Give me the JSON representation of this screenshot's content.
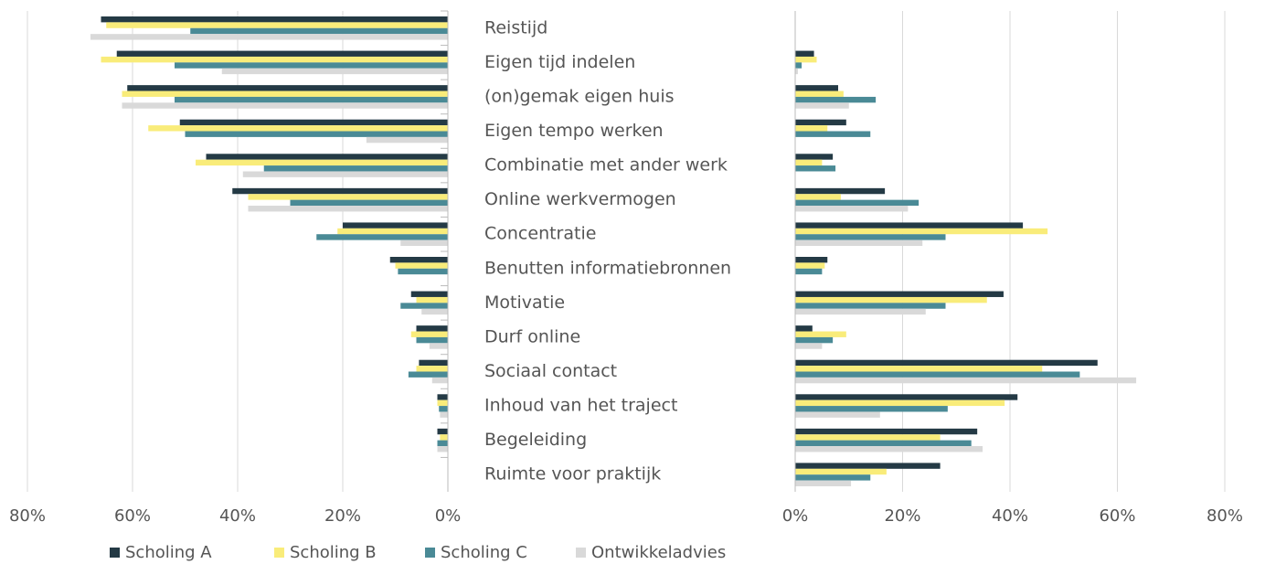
{
  "chart_data": {
    "type": "butterfly",
    "categories": [
      "Reistijd",
      "Eigen tijd indelen",
      "(on)gemak eigen huis",
      "Eigen tempo werken",
      "Combinatie met ander werk",
      "Online werkvermogen",
      "Concentratie",
      "Benutten informatiebronnen",
      "Motivatie",
      "Durf online",
      "Sociaal contact",
      "Inhoud van het traject",
      "Begeleiding",
      "Ruimte voor praktijk"
    ],
    "series": [
      {
        "name": "Scholing A",
        "color": "#243a45",
        "left": [
          66,
          63,
          61,
          51,
          46,
          41,
          20,
          11,
          7,
          6,
          5.5,
          2,
          2,
          0
        ],
        "right": [
          0,
          3.5,
          8,
          9.5,
          7,
          16.7,
          42.4,
          6,
          38.8,
          3.2,
          56.3,
          41.4,
          33.9,
          27
        ]
      },
      {
        "name": "Scholing B",
        "color": "#f9ec7a",
        "left": [
          65,
          66,
          62,
          57,
          48,
          38,
          21,
          10,
          6,
          7,
          6,
          2,
          1.5,
          0
        ],
        "right": [
          0,
          4,
          9,
          6,
          5,
          8.5,
          47,
          5.5,
          35.7,
          9.5,
          46,
          39,
          27,
          17
        ]
      },
      {
        "name": "Scholing C",
        "color": "#4a8a96",
        "left": [
          49,
          52,
          52,
          50,
          35,
          30,
          25,
          9.5,
          9,
          6,
          7.5,
          1.7,
          2,
          0
        ],
        "right": [
          0,
          1.2,
          15,
          14,
          7.5,
          23,
          28,
          5,
          28,
          7,
          53,
          28.4,
          32.8,
          14
        ]
      },
      {
        "name": "Ontwikkeladvies",
        "color": "#d9d9d9",
        "left": [
          68,
          43,
          62,
          15.5,
          39,
          38,
          9,
          0,
          5,
          3.5,
          3,
          1.5,
          2,
          0
        ],
        "right": [
          0,
          0.5,
          10,
          0,
          0,
          21,
          23.7,
          0,
          24.3,
          5,
          63.5,
          15.8,
          34.9,
          10.4
        ]
      }
    ],
    "xlim": [
      0,
      80
    ],
    "xticks": [
      {
        "value": 0,
        "label": "0%"
      },
      {
        "value": 20,
        "label": "20%"
      },
      {
        "value": 40,
        "label": "40%"
      },
      {
        "value": 60,
        "label": "60%"
      },
      {
        "value": 80,
        "label": "80%"
      }
    ],
    "grid": true
  }
}
